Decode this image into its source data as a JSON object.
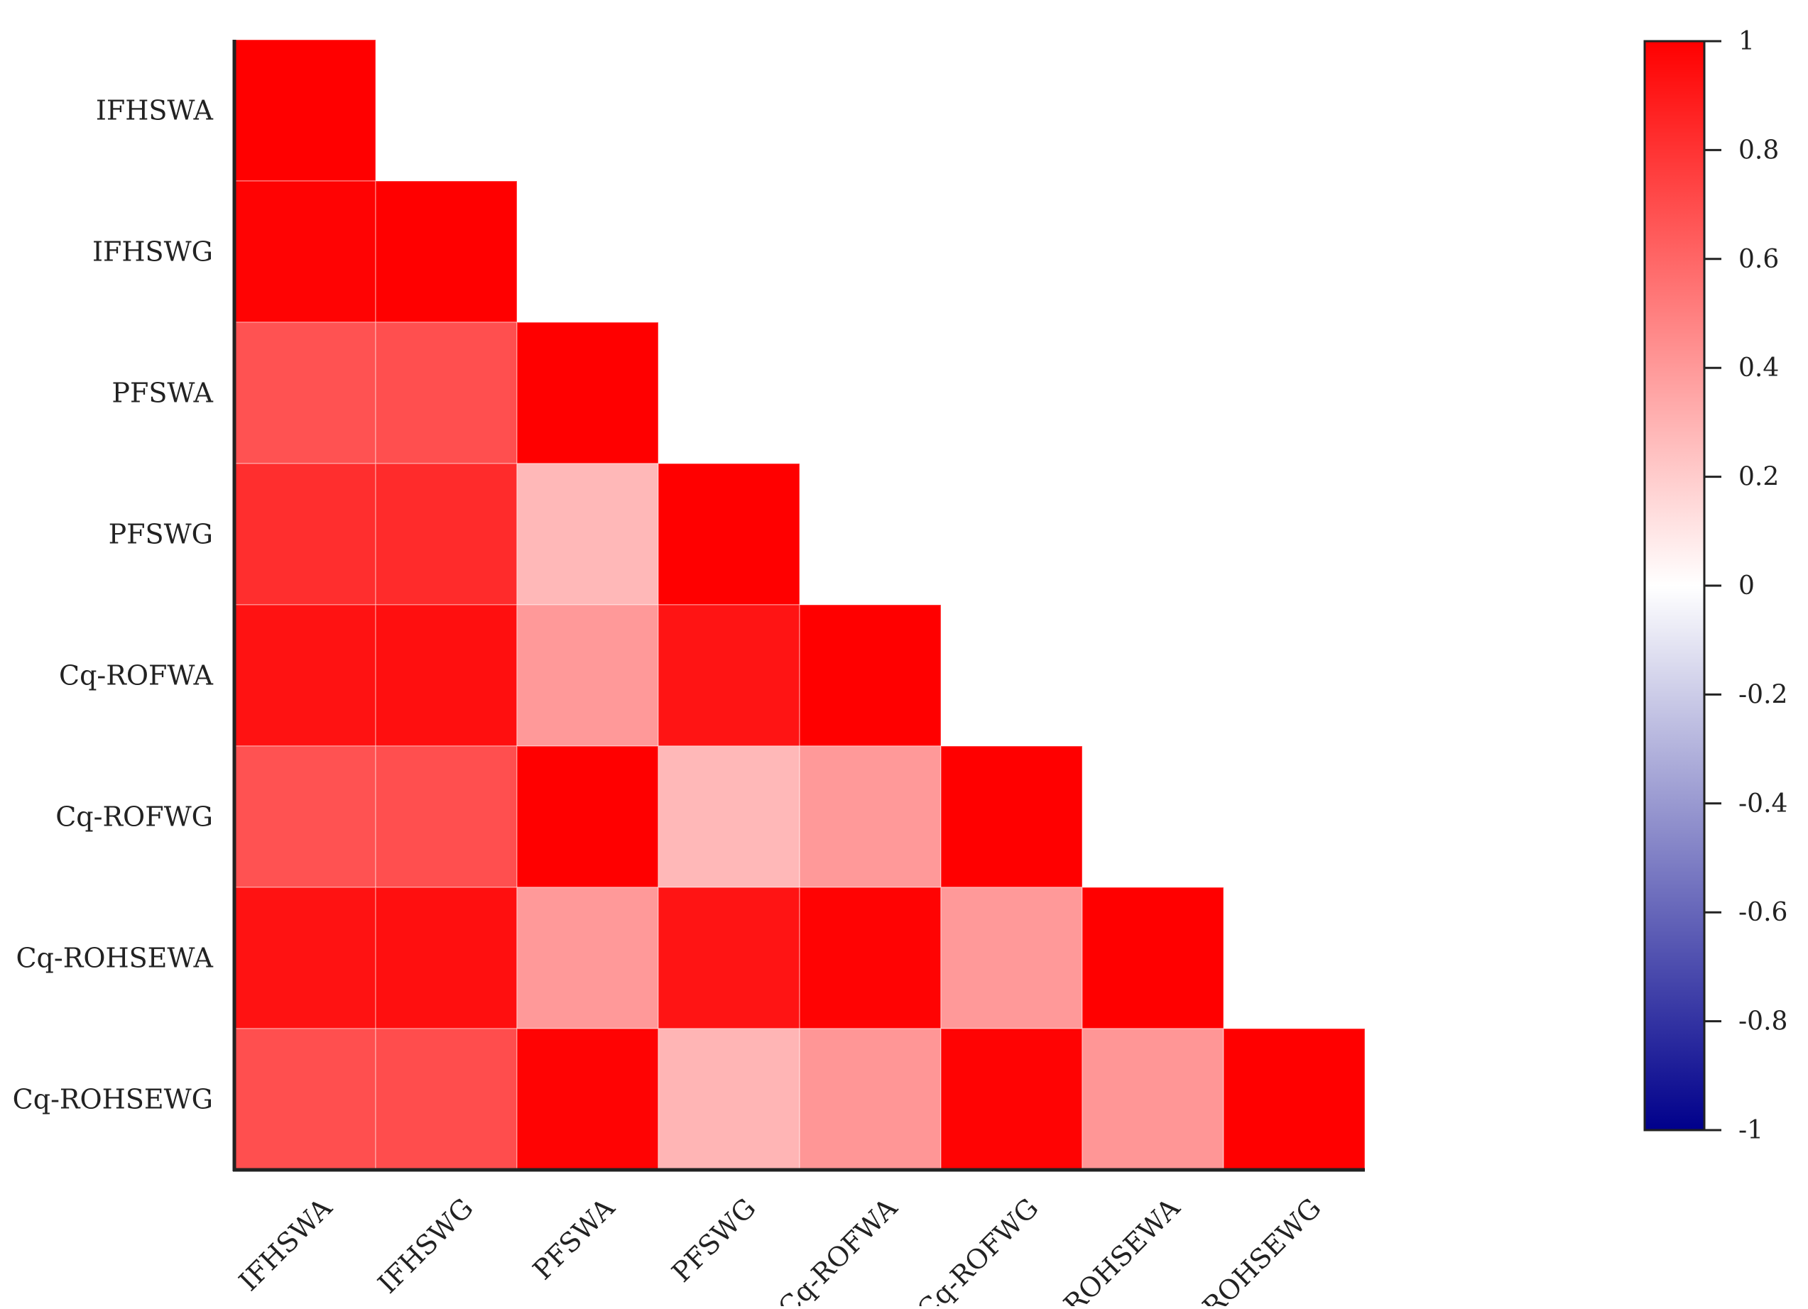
{
  "chart_data": {
    "type": "heatmap",
    "title": "",
    "xlabel": "",
    "ylabel": "",
    "variables": [
      "IFHSWA",
      "IFHSWG",
      "PFSWA",
      "PFSWG",
      "Cq-ROFWA",
      "Cq-ROFWG",
      "Cq-ROHSEWA",
      "Cq-ROHSEWG"
    ],
    "triangle": "lower",
    "matrix": [
      [
        1.0
      ],
      [
        0.99,
        1.0
      ],
      [
        0.68,
        0.69,
        1.0
      ],
      [
        0.82,
        0.83,
        0.28,
        1.0
      ],
      [
        0.93,
        0.94,
        0.4,
        0.92,
        1.0
      ],
      [
        0.68,
        0.69,
        1.0,
        0.28,
        0.4,
        1.0
      ],
      [
        0.93,
        0.94,
        0.4,
        0.92,
        0.99,
        0.4,
        1.0
      ],
      [
        0.69,
        0.7,
        0.99,
        0.29,
        0.41,
        0.99,
        0.41,
        1.0
      ]
    ],
    "colorbar": {
      "min": -1,
      "max": 1,
      "ticks": [
        "1",
        "0.8",
        "0.6",
        "0.4",
        "0.2",
        "0",
        "-0.2",
        "-0.4",
        "-0.6",
        "-0.8",
        "-1"
      ],
      "colors": {
        "low": "#00008b",
        "mid": "#ffffff",
        "high": "#ff0000"
      }
    },
    "grid": false,
    "legend": "right"
  }
}
